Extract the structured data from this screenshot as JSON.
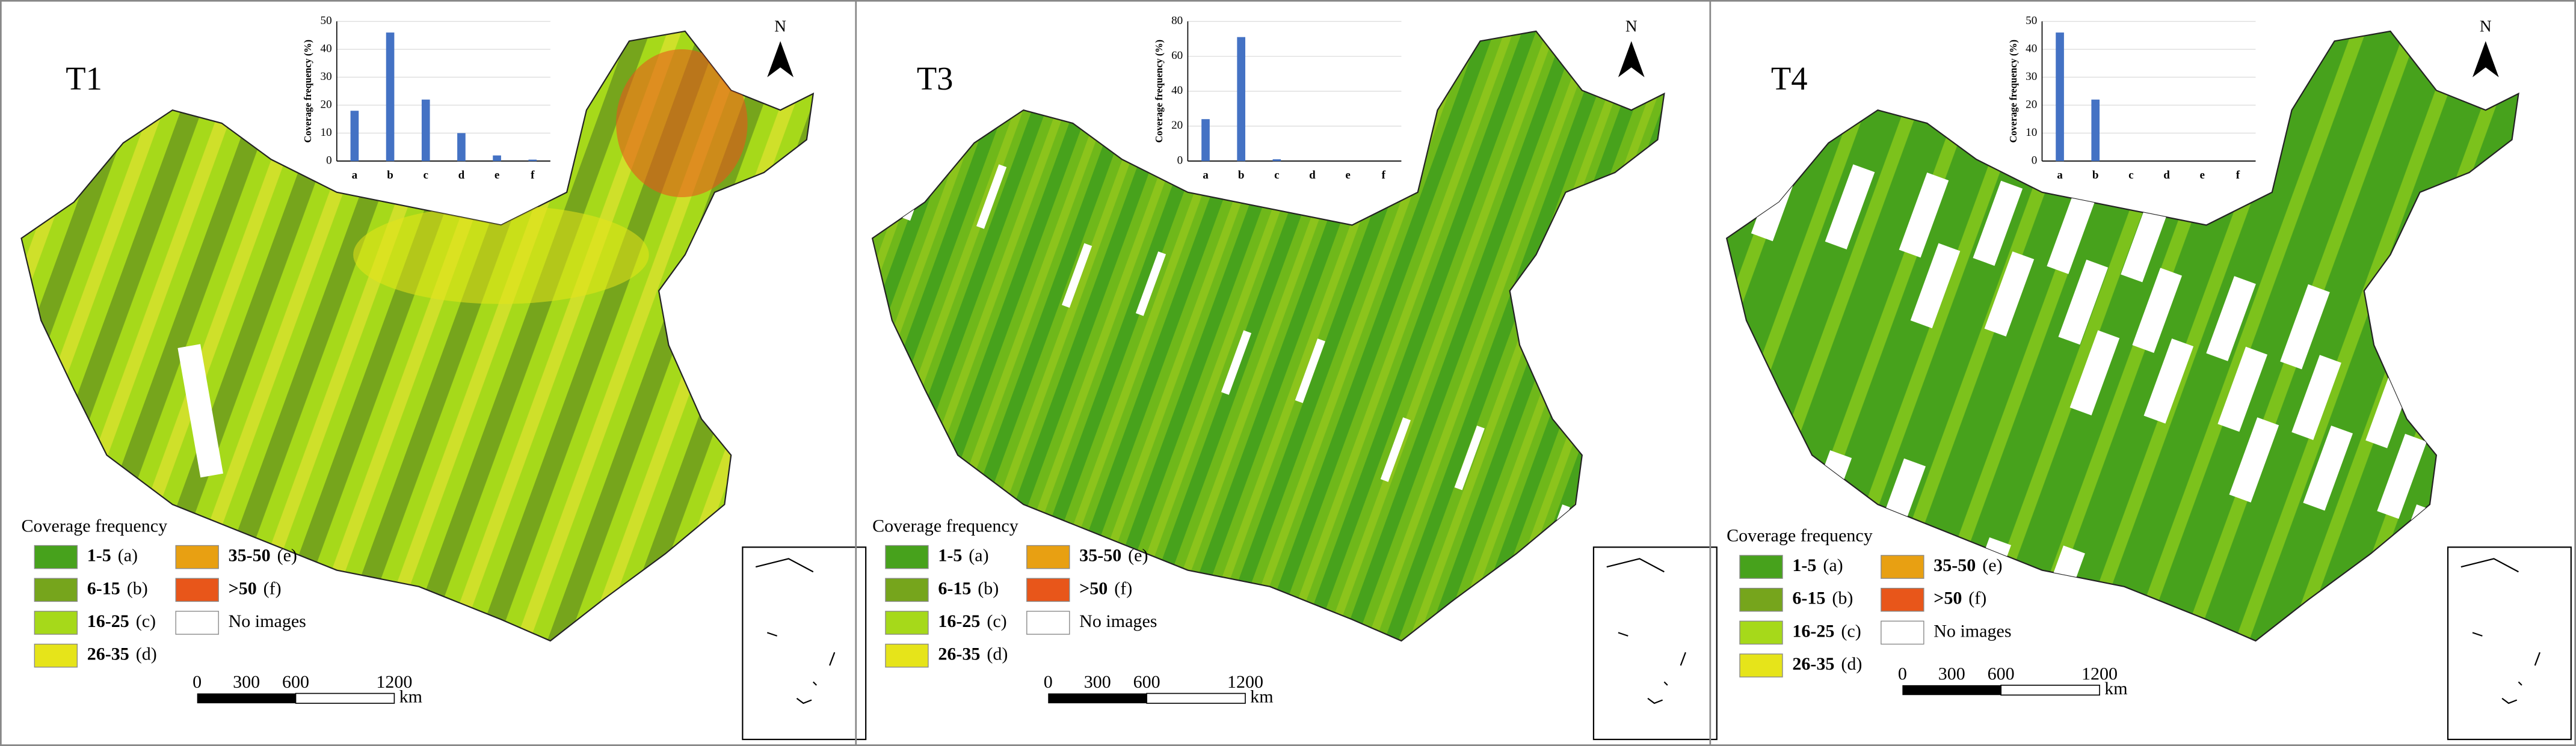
{
  "chart_data": [
    {
      "type": "bar",
      "title": "T1",
      "ylabel": "Coverage frequency (%)",
      "categories": [
        "a",
        "b",
        "c",
        "d",
        "e",
        "f"
      ],
      "values": [
        18,
        46,
        22,
        10,
        2,
        0.5
      ],
      "color": "#4472c4",
      "ylim": [
        0,
        50
      ],
      "yticks": [
        0,
        10,
        20,
        30,
        40,
        50
      ],
      "grid": true
    },
    {
      "type": "bar",
      "title": "T3",
      "ylabel": "Coverage frequency (%)",
      "categories": [
        "a",
        "b",
        "c",
        "d",
        "e",
        "f"
      ],
      "values": [
        24,
        71,
        1,
        0,
        0,
        0
      ],
      "color": "#4472c4",
      "ylim": [
        0,
        80
      ],
      "yticks": [
        0,
        20,
        40,
        60,
        80
      ],
      "grid": true
    },
    {
      "type": "bar",
      "title": "T4",
      "ylabel": "Coverage frequency (%)",
      "categories": [
        "a",
        "b",
        "c",
        "d",
        "e",
        "f"
      ],
      "values": [
        46,
        22,
        0,
        0,
        0,
        0
      ],
      "color": "#4472c4",
      "ylim": [
        0,
        50
      ],
      "yticks": [
        0,
        10,
        20,
        30,
        40,
        50
      ],
      "grid": true
    }
  ],
  "legend": {
    "title": "Coverage frequency",
    "items": [
      {
        "label": "1-5",
        "code": "(a)",
        "color": "#47a21c"
      },
      {
        "label": "6-15",
        "code": "(b)",
        "color": "#76a51c"
      },
      {
        "label": "16-25",
        "code": "(c)",
        "color": "#a6d91a"
      },
      {
        "label": "26-35",
        "code": "(d)",
        "color": "#e6e41a"
      },
      {
        "label": "35-50",
        "code": "(e)",
        "color": "#e8a012"
      },
      {
        "label": ">50",
        "code": "(f)",
        "color": "#e8561a"
      },
      {
        "label": "No images",
        "color": "#ffffff"
      }
    ]
  },
  "north": "N",
  "scale": {
    "ticks": [
      0,
      300,
      600,
      1200
    ],
    "unit": "km"
  }
}
